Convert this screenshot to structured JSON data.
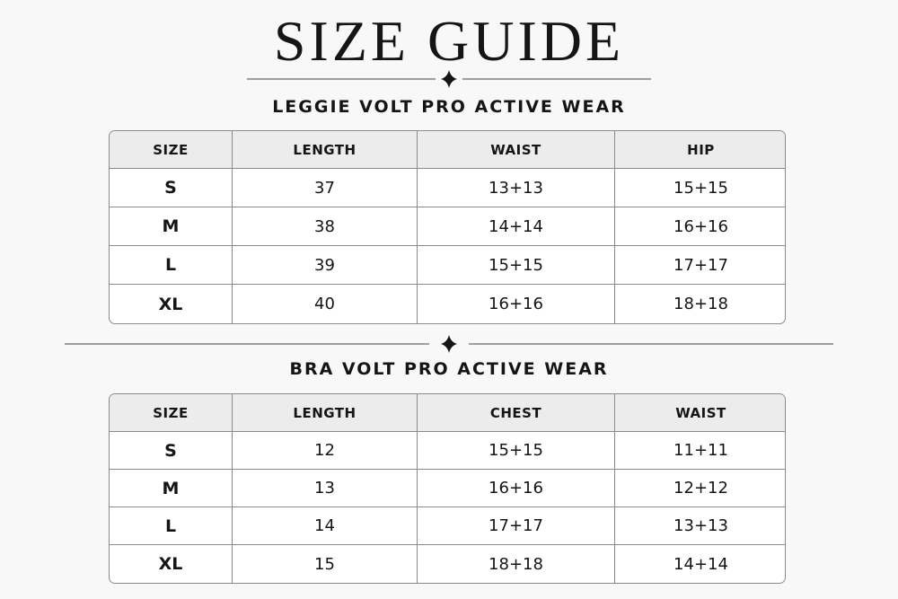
{
  "title": "SIZE GUIDE",
  "sections": [
    {
      "title": "LEGGIE VOLT PRO ACTIVE WEAR",
      "table": {
        "header": [
          "SIZE",
          "LENGTH",
          "WAIST",
          "HIP"
        ],
        "rows": [
          [
            "S",
            "37",
            "13+13",
            "15+15"
          ],
          [
            "M",
            "38",
            "14+14",
            "16+16"
          ],
          [
            "L",
            "39",
            "15+15",
            "17+17"
          ],
          [
            "XL",
            "40",
            "16+16",
            "18+18"
          ]
        ]
      }
    },
    {
      "title": "BRA VOLT PRO ACTIVE WEAR",
      "table": {
        "header": [
          "SIZE",
          "LENGTH",
          "CHEST",
          "WAIST"
        ],
        "rows": [
          [
            "S",
            "12",
            "15+15",
            "11+11"
          ],
          [
            "M",
            "13",
            "16+16",
            "12+12"
          ],
          [
            "L",
            "14",
            "17+17",
            "13+13"
          ],
          [
            "XL",
            "15",
            "18+18",
            "14+14"
          ]
        ]
      }
    }
  ]
}
